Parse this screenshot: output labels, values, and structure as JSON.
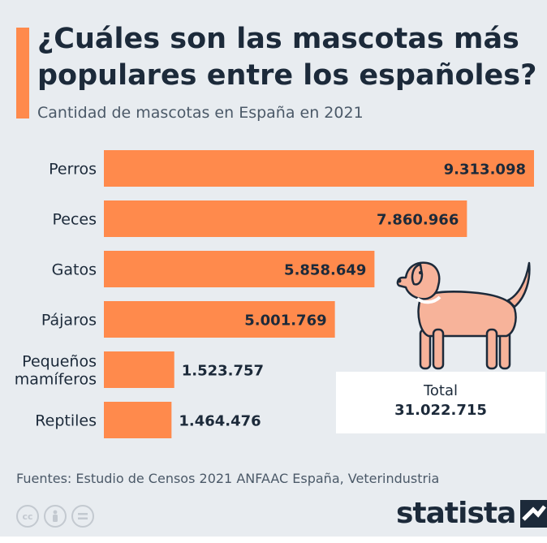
{
  "header": {
    "title": "¿Cuáles son las mascotas más populares entre los españoles?",
    "subtitle": "Cantidad de mascotas en España en 2021"
  },
  "chart_data": {
    "type": "bar",
    "orientation": "horizontal",
    "categories": [
      "Perros",
      "Peces",
      "Gatos",
      "Pájaros",
      "Pequeños mamíferos",
      "Reptiles"
    ],
    "category_lines": [
      [
        "Perros"
      ],
      [
        "Peces"
      ],
      [
        "Gatos"
      ],
      [
        "Pájaros"
      ],
      [
        "Pequeños",
        "mamíferos"
      ],
      [
        "Reptiles"
      ]
    ],
    "values": [
      9313098,
      7860966,
      5858649,
      5001769,
      1523757,
      1464476
    ],
    "value_labels": [
      "9.313.098",
      "7.860.966",
      "5.858.649",
      "5.001.769",
      "1.523.757",
      "1.464.476"
    ],
    "bar_color": "#ff8a4c",
    "grid": false
  },
  "total": {
    "label": "Total",
    "value": "31.022.715"
  },
  "footer": {
    "source": "Fuentes: Estudio de Censos 2021 ANFAAC España, Veterindustria",
    "brand": "statista"
  },
  "icons": {
    "license": [
      "cc-icon",
      "attribution-icon",
      "no-derivatives-icon"
    ],
    "illustration": "dog-icon"
  }
}
